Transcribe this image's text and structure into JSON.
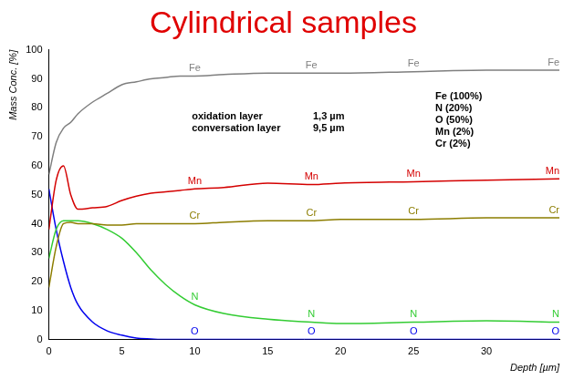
{
  "chart_data": {
    "type": "line",
    "title": "Cylindrical samples",
    "x_label": "Depth [µm]",
    "y_label": "Mass Conc. [%]",
    "x": [
      0,
      0.5,
      1,
      1.5,
      2,
      3,
      4,
      5,
      6,
      7,
      8,
      9,
      10,
      12,
      15,
      18,
      20,
      25,
      30,
      35
    ],
    "series": [
      {
        "name": "Fe",
        "color": "#7f7f7f",
        "values": [
          57,
          68,
          73,
          75,
          78,
          82,
          85,
          88,
          89,
          90,
          90.5,
          91,
          91,
          91.5,
          92,
          92,
          92,
          92.5,
          93,
          93
        ]
      },
      {
        "name": "Mn",
        "color": "#d40000",
        "values": [
          38,
          55,
          60,
          50,
          45,
          45.5,
          46,
          48,
          49.5,
          50.5,
          51,
          51.5,
          52,
          52.5,
          54,
          53.5,
          54,
          54.5,
          55,
          55.5
        ]
      },
      {
        "name": "Cr",
        "color": "#8c7d00",
        "values": [
          18,
          32,
          40,
          40.5,
          40,
          40,
          39.5,
          39.5,
          40,
          40,
          40,
          40,
          40,
          40.5,
          41,
          41,
          41.5,
          41.5,
          42,
          42
        ]
      },
      {
        "name": "N",
        "color": "#33cc33",
        "values": [
          28,
          38,
          41,
          41,
          41,
          40,
          38,
          35,
          30,
          24,
          19,
          15,
          12,
          9,
          7,
          6,
          5.5,
          6,
          6.5,
          6
        ]
      },
      {
        "name": "O",
        "color": "#0000ee",
        "values": [
          52,
          38,
          27,
          18,
          12,
          6,
          3,
          1.5,
          0.5,
          0.2,
          0,
          0,
          0,
          0,
          0,
          0,
          0,
          0,
          0,
          0
        ]
      }
    ],
    "xlim": [
      0,
      35
    ],
    "xticks": [
      0,
      5,
      10,
      15,
      20,
      25,
      30
    ],
    "ylim": [
      0,
      100
    ],
    "yticks": [
      0,
      10,
      20,
      30,
      40,
      50,
      60,
      70,
      80,
      90,
      100
    ],
    "grid": false,
    "annotations": [
      {
        "label": "oxidation layer",
        "value": "1,3 µm"
      },
      {
        "label": "conversation layer",
        "value": "9,5 µm"
      }
    ],
    "scale_factors": [
      "Fe (100%)",
      "N (20%)",
      "O (50%)",
      "Mn (2%)",
      "Cr (2%)"
    ]
  }
}
